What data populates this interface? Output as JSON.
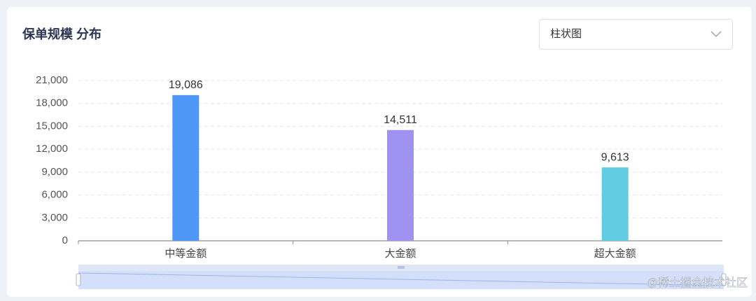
{
  "chart_data": {
    "type": "bar",
    "title": "保单规模 分布",
    "categories": [
      "中等金额",
      "大金额",
      "超大金额"
    ],
    "values": [
      19086,
      14511,
      9613
    ],
    "value_labels": [
      "19,086",
      "14,511",
      "9,613"
    ],
    "colors": [
      "#4f97f7",
      "#a092f0",
      "#5fcce1"
    ],
    "ylim": [
      0,
      21000
    ],
    "yticks": [
      0,
      {
        "value": 3000,
        "label": "3,000"
      },
      {
        "value": 6000,
        "label": "6,000"
      },
      {
        "value": 9000,
        "label": "9,000"
      },
      {
        "value": 12000,
        "label": "12,000"
      },
      {
        "value": 15000,
        "label": "15,000"
      },
      {
        "value": 18000,
        "label": "18,000"
      },
      {
        "value": 21000,
        "label": "21,000"
      }
    ],
    "grid": true
  },
  "controls": {
    "chart_type": "柱状图"
  },
  "watermark": "@稀土掘金技术社区"
}
